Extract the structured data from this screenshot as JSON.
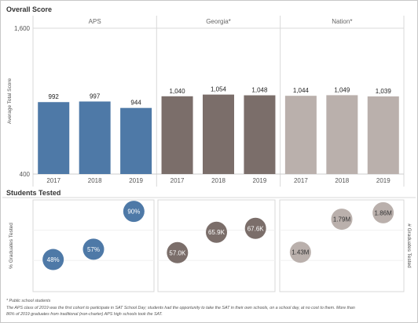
{
  "titles": {
    "overall": "Overall Score",
    "tested": "Students Tested"
  },
  "chart_data": [
    {
      "type": "bar",
      "title": "Overall Score",
      "ylabel": "Average Total Score",
      "ylim": [
        400,
        1600
      ],
      "yticks": [
        "1,600",
        "400"
      ],
      "categories": [
        "2017",
        "2018",
        "2019"
      ],
      "panels": [
        {
          "name": "APS",
          "color": "#4e79a7",
          "values": [
            992,
            997,
            944
          ],
          "labels": [
            "992",
            "997",
            "944"
          ]
        },
        {
          "name": "Georgia*",
          "color": "#7b6e6a",
          "values": [
            1040,
            1054,
            1048
          ],
          "labels": [
            "1,040",
            "1,054",
            "1,048"
          ]
        },
        {
          "name": "Nation*",
          "color": "#bab0ac",
          "values": [
            1044,
            1049,
            1039
          ],
          "labels": [
            "1,044",
            "1,049",
            "1,039"
          ]
        }
      ]
    },
    {
      "type": "scatter",
      "title": "Students Tested",
      "left_axis_label": "% Graduates Tested",
      "right_axis_label": "# Graduates Tested",
      "categories": [
        "2017",
        "2018",
        "2019"
      ],
      "panels": [
        {
          "color": "#4e79a7",
          "label_color": "#ffffff",
          "values": [
            48,
            57,
            90
          ],
          "labels": [
            "48%",
            "57%",
            "90%"
          ],
          "ylim": [
            20,
            100
          ]
        },
        {
          "color": "#7b6e6a",
          "label_color": "#ffffff",
          "values": [
            57.0,
            65.9,
            67.6
          ],
          "labels": [
            "57.0K",
            "65.9K",
            "67.6K"
          ],
          "ylim": [
            40,
            80
          ]
        },
        {
          "color": "#bab0ac",
          "label_color": "#333333",
          "values": [
            1.43,
            1.79,
            1.86
          ],
          "labels": [
            "1.43M",
            "1.79M",
            "1.86M"
          ],
          "ylim": [
            1.0,
            2.0
          ]
        }
      ]
    }
  ],
  "footnotes": [
    "* Public school students",
    "The APS class of 2019 was the first cohort to participate in SAT School Day; students had the opportunity to take the SAT in their own schools, on a school day, at no cost to them. More than",
    "86% of 2019 graduates from traditional (non-charter) APS high schools took the SAT."
  ]
}
